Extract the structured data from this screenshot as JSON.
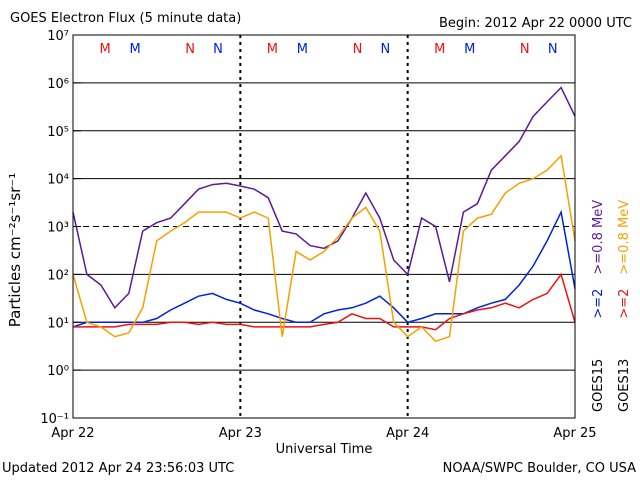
{
  "chart_data": {
    "type": "line",
    "title": "GOES Electron Flux (5 minute data)",
    "subtitle": "Begin: 2012 Apr 22 0000 UTC",
    "xlabel": "Universal Time",
    "ylabel": "Particles cm⁻²s⁻¹sr⁻¹",
    "footer_left": "Updated 2012 Apr 24 23:56:03 UTC",
    "footer_right": "NOAA/SWPC Boulder, CO USA",
    "log_y": true,
    "grid": true,
    "ylim": [
      0.1,
      10000000
    ],
    "yticks": [
      {
        "value": 0.1,
        "label": "10⁻¹"
      },
      {
        "value": 1,
        "label": "10⁰"
      },
      {
        "value": 10,
        "label": "10¹"
      },
      {
        "value": 100,
        "label": "10²"
      },
      {
        "value": 1000,
        "label": "10³"
      },
      {
        "value": 10000,
        "label": "10⁴"
      },
      {
        "value": 100000,
        "label": "10⁵"
      },
      {
        "value": 1000000,
        "label": "10⁶"
      },
      {
        "value": 10000000,
        "label": "10⁷"
      }
    ],
    "dashed_ytick": 1000,
    "xlim": [
      0,
      72
    ],
    "xticks": [
      {
        "value": 0,
        "label": "Apr 22"
      },
      {
        "value": 24,
        "label": "Apr 23"
      },
      {
        "value": 48,
        "label": "Apr 24"
      },
      {
        "value": 72,
        "label": "Apr 25"
      }
    ],
    "x": [
      0,
      2,
      4,
      6,
      8,
      10,
      12,
      14,
      16,
      18,
      20,
      22,
      24,
      26,
      28,
      30,
      32,
      34,
      36,
      38,
      40,
      42,
      44,
      46,
      48,
      50,
      52,
      54,
      56,
      58,
      60,
      62,
      64,
      66,
      68,
      70,
      72
    ],
    "series": [
      {
        "group": "GOES15",
        "name": ">=2",
        "color": "#0022dd",
        "values": [
          8,
          10,
          10,
          10,
          10,
          10,
          12,
          18,
          25,
          35,
          40,
          30,
          25,
          18,
          15,
          12,
          10,
          10,
          15,
          18,
          20,
          25,
          35,
          20,
          10,
          12,
          15,
          15,
          15,
          20,
          25,
          30,
          60,
          150,
          500,
          2000,
          50
        ]
      },
      {
        "group": "GOES15",
        "name": ">=0.8 MeV",
        "color": "#5a1a9a",
        "values": [
          2000,
          100,
          60,
          20,
          40,
          800,
          1200,
          1500,
          3000,
          6000,
          7500,
          8000,
          7000,
          6000,
          4000,
          800,
          700,
          400,
          350,
          500,
          1500,
          5000,
          1500,
          200,
          100,
          1500,
          1000,
          70,
          2000,
          3000,
          15000,
          30000,
          60000,
          200000,
          400000,
          800000,
          200000
        ]
      },
      {
        "group": "GOES13",
        "name": ">=2",
        "color": "#ee1111",
        "values": [
          8,
          8,
          8,
          8,
          9,
          9,
          9,
          10,
          10,
          9,
          10,
          9,
          9,
          8,
          8,
          8,
          8,
          8,
          9,
          10,
          15,
          12,
          12,
          8,
          8,
          8,
          7,
          12,
          15,
          18,
          20,
          25,
          20,
          30,
          40,
          100,
          10
        ]
      },
      {
        "group": "GOES13",
        "name": ">=0.8 MeV",
        "color": "#f5a000",
        "values": [
          100,
          10,
          8,
          5,
          6,
          20,
          500,
          800,
          1200,
          2000,
          2000,
          2000,
          1500,
          2000,
          1500,
          5,
          300,
          200,
          300,
          600,
          1500,
          2500,
          800,
          10,
          5,
          8,
          4,
          5,
          800,
          1500,
          1800,
          5000,
          8000,
          10000,
          15000,
          30000,
          500
        ]
      }
    ],
    "annotations": [
      {
        "text": "M",
        "color": "#ee1111",
        "x": 4.6
      },
      {
        "text": "M",
        "color": "#0022dd",
        "x": 8.9
      },
      {
        "text": "N",
        "color": "#ee1111",
        "x": 16.8
      },
      {
        "text": "N",
        "color": "#0022dd",
        "x": 20.8
      },
      {
        "text": "M",
        "color": "#ee1111",
        "x": 28.6
      },
      {
        "text": "M",
        "color": "#0022dd",
        "x": 32.9
      },
      {
        "text": "N",
        "color": "#ee1111",
        "x": 40.8
      },
      {
        "text": "N",
        "color": "#0022dd",
        "x": 44.8
      },
      {
        "text": "M",
        "color": "#ee1111",
        "x": 52.6
      },
      {
        "text": "M",
        "color": "#0022dd",
        "x": 56.9
      },
      {
        "text": "N",
        "color": "#ee1111",
        "x": 64.8
      },
      {
        "text": "N",
        "color": "#0022dd",
        "x": 68.8
      }
    ]
  }
}
